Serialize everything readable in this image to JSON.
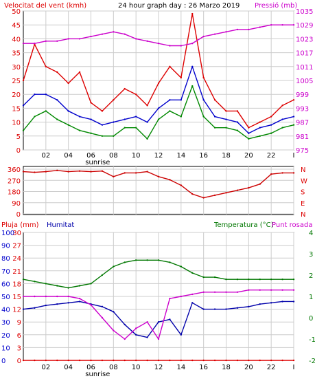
{
  "colors": {
    "wind": "#dd0000",
    "avg": "#0000cc",
    "low": "#008800",
    "pressure": "#cc00cc",
    "rain": "#dd0000",
    "humidity": "#0000aa",
    "temperature": "#007700",
    "dew": "#cc00cc",
    "direction": "#cc0000",
    "grid": "#cccccc"
  },
  "header": {
    "left": "Velocitat del vent (kmh)",
    "center": "24 hour graph day : 26 Marzo 2019",
    "right": "Pressió (mb)"
  },
  "panel3": {
    "rain": "Pluja (mm)",
    "humidity": "Humitat",
    "temp": "Temperatura (°C)",
    "dew": "Punt rosada"
  },
  "hour_ticks": [
    "02",
    "04",
    "06",
    "08",
    "10",
    "12",
    "14",
    "16",
    "18",
    "20",
    "22",
    "I"
  ],
  "sunrise_label": "sunrise",
  "chart_data": [
    {
      "type": "line",
      "title": "24 hour graph day : 26 Marzo 2019",
      "xlabel": "",
      "ylabel": "Velocitat del vent (kmh)",
      "ylabel_right": "Pressió (mb)",
      "ylim": [
        0,
        50
      ],
      "ylim_right": [
        975,
        1035
      ],
      "y_ticks": [
        "0",
        "5",
        "10",
        "15",
        "20",
        "25",
        "30",
        "35",
        "40",
        "45",
        "50"
      ],
      "y_right_ticks": [
        "975",
        "981",
        "987",
        "993",
        "999",
        "1005",
        "1011",
        "1017",
        "1023",
        "1029",
        "1035"
      ],
      "x": [
        0,
        1,
        2,
        3,
        4,
        5,
        6,
        7,
        8,
        9,
        10,
        11,
        12,
        13,
        14,
        15,
        16,
        17,
        18,
        19,
        20,
        21,
        22,
        23,
        24
      ],
      "series": [
        {
          "name": "",
          "key": "gust",
          "color_key": "wind",
          "values": [
            25,
            38,
            30,
            28,
            24,
            28,
            17,
            14,
            18,
            22,
            20,
            16,
            24,
            30,
            26,
            49,
            26,
            18,
            14,
            14,
            8,
            10,
            12,
            16,
            18
          ]
        },
        {
          "name": "",
          "key": "avg",
          "color_key": "avg",
          "values": [
            16,
            20,
            20,
            18,
            14,
            12,
            11,
            9,
            10,
            11,
            12,
            10,
            15,
            18,
            18,
            30,
            18,
            12,
            11,
            10,
            6,
            8,
            9,
            11,
            12
          ]
        },
        {
          "name": "",
          "key": "low",
          "color_key": "low",
          "values": [
            7,
            12,
            14,
            11,
            9,
            7,
            6,
            5,
            5,
            8,
            8,
            4,
            11,
            14,
            12,
            23,
            12,
            8,
            8,
            7,
            4,
            5,
            6,
            8,
            9
          ]
        },
        {
          "name": "",
          "key": "pressure",
          "color_key": "pressure",
          "axis": "right",
          "values": [
            1021,
            1021,
            1022,
            1022,
            1023,
            1023,
            1024,
            1025,
            1026,
            1025,
            1023,
            1022,
            1021,
            1020,
            1020,
            1021,
            1024,
            1025,
            1026,
            1027,
            1027,
            1028,
            1029,
            1029,
            1029
          ]
        }
      ]
    },
    {
      "type": "line",
      "ylabel_right": "N W S E N",
      "ylim": [
        0,
        360
      ],
      "y_ticks": [
        "0",
        "90",
        "180",
        "270",
        "360"
      ],
      "compass": [
        "N",
        "W",
        "S",
        "E",
        "N"
      ],
      "x": [
        0,
        1,
        2,
        3,
        4,
        5,
        6,
        7,
        8,
        9,
        10,
        11,
        12,
        13,
        14,
        15,
        16,
        17,
        18,
        19,
        20,
        21,
        22,
        23,
        24
      ],
      "series": [
        {
          "name": "",
          "key": "direction",
          "color_key": "direction",
          "values": [
            340,
            335,
            340,
            350,
            340,
            345,
            340,
            345,
            300,
            330,
            330,
            340,
            300,
            275,
            230,
            160,
            130,
            150,
            170,
            190,
            210,
            240,
            320,
            330,
            330
          ]
        }
      ]
    },
    {
      "type": "line",
      "ylim_rain": [
        0,
        30
      ],
      "y_ticks_rain": [
        "0",
        "3",
        "6",
        "9",
        "12",
        "15",
        "18",
        "21",
        "24",
        "27",
        "30"
      ],
      "ylim_humidity": [
        0,
        100
      ],
      "y_ticks_humidity": [
        "0",
        "10",
        "20",
        "30",
        "40",
        "50",
        "60",
        "70",
        "80",
        "90",
        "100"
      ],
      "ylim_temp": [
        -2,
        4
      ],
      "y_ticks_temp_right": [
        "-2",
        "-1",
        "0",
        "1",
        "2",
        "3",
        "4"
      ],
      "x": [
        0,
        1,
        2,
        3,
        4,
        5,
        6,
        7,
        8,
        9,
        10,
        11,
        12,
        13,
        14,
        15,
        16,
        17,
        18,
        19,
        20,
        21,
        22,
        23,
        24
      ],
      "series": [
        {
          "name": "Pluja (mm)",
          "key": "rain",
          "color_key": "rain",
          "axis": "rain",
          "values": [
            0,
            0,
            0,
            0,
            0,
            0,
            0,
            0,
            0,
            0,
            0,
            0,
            0,
            0,
            0,
            0,
            0,
            0,
            0,
            0,
            0,
            0,
            0,
            0,
            0
          ]
        },
        {
          "name": "Humitat",
          "key": "humidity",
          "color_key": "humidity",
          "axis": "humidity",
          "values": [
            40,
            41,
            43,
            44,
            45,
            46,
            44,
            42,
            38,
            28,
            20,
            18,
            30,
            32,
            20,
            45,
            40,
            40,
            40,
            41,
            42,
            44,
            45,
            46,
            46
          ]
        },
        {
          "name": "Temperatura (°C)",
          "key": "temperature",
          "color_key": "temperature",
          "axis": "temp",
          "values": [
            1.8,
            1.7,
            1.6,
            1.5,
            1.4,
            1.5,
            1.6,
            2.0,
            2.4,
            2.6,
            2.7,
            2.7,
            2.7,
            2.6,
            2.4,
            2.1,
            1.9,
            1.9,
            1.8,
            1.8,
            1.8,
            1.8,
            1.8,
            1.8,
            1.8
          ]
        },
        {
          "name": "Punt rosada",
          "key": "dew",
          "color_key": "dew",
          "axis": "temp",
          "values": [
            1.0,
            1.0,
            1.0,
            1.0,
            1.0,
            0.9,
            0.6,
            0.0,
            -0.6,
            -1.0,
            -0.5,
            -0.2,
            -1.0,
            0.9,
            1.0,
            1.1,
            1.2,
            1.2,
            1.2,
            1.2,
            1.3,
            1.3,
            1.3,
            1.3,
            1.3
          ]
        }
      ]
    }
  ]
}
